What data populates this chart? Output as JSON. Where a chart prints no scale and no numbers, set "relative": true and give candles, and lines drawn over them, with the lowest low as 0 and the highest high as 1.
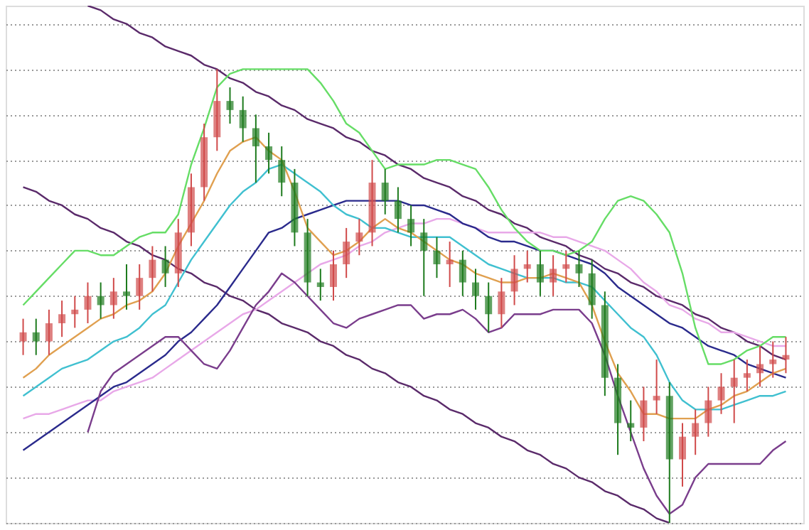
{
  "chart_data": {
    "type": "candlestick",
    "relative": true,
    "grid": "y",
    "categories": [
      null,
      null,
      null,
      null,
      null,
      null,
      null,
      null,
      null,
      null,
      null,
      null,
      null,
      null,
      null,
      null,
      null,
      null,
      null,
      null,
      null,
      null,
      null,
      null,
      null,
      null,
      null,
      null,
      null,
      null,
      null,
      null,
      null,
      null,
      null,
      null,
      null,
      null,
      null,
      null,
      null,
      null,
      null,
      null,
      null,
      null,
      null,
      null,
      null,
      null,
      null,
      null,
      null,
      null,
      null,
      null,
      null,
      null,
      null,
      null
    ],
    "ohlc": [
      [
        0.4,
        0.45,
        0.37,
        0.42
      ],
      [
        0.42,
        0.45,
        0.37,
        0.4
      ],
      [
        0.4,
        0.47,
        0.37,
        0.44
      ],
      [
        0.44,
        0.49,
        0.41,
        0.46
      ],
      [
        0.46,
        0.5,
        0.43,
        0.47
      ],
      [
        0.47,
        0.53,
        0.44,
        0.5
      ],
      [
        0.5,
        0.53,
        0.45,
        0.48
      ],
      [
        0.48,
        0.54,
        0.45,
        0.51
      ],
      [
        0.51,
        0.57,
        0.47,
        0.5
      ],
      [
        0.5,
        0.57,
        0.47,
        0.54
      ],
      [
        0.54,
        0.61,
        0.51,
        0.58
      ],
      [
        0.58,
        0.61,
        0.52,
        0.55
      ],
      [
        0.55,
        0.67,
        0.52,
        0.64
      ],
      [
        0.64,
        0.77,
        0.61,
        0.74
      ],
      [
        0.74,
        0.88,
        0.71,
        0.85
      ],
      [
        0.85,
        1.0,
        0.82,
        0.93
      ],
      [
        0.93,
        0.96,
        0.88,
        0.91
      ],
      [
        0.91,
        0.94,
        0.84,
        0.87
      ],
      [
        0.87,
        0.9,
        0.75,
        0.83
      ],
      [
        0.83,
        0.86,
        0.77,
        0.8
      ],
      [
        0.8,
        0.83,
        0.72,
        0.75
      ],
      [
        0.75,
        0.78,
        0.61,
        0.64
      ],
      [
        0.64,
        0.67,
        0.5,
        0.53
      ],
      [
        0.53,
        0.56,
        0.49,
        0.52
      ],
      [
        0.52,
        0.6,
        0.49,
        0.57
      ],
      [
        0.57,
        0.65,
        0.54,
        0.62
      ],
      [
        0.62,
        0.67,
        0.59,
        0.64
      ],
      [
        0.64,
        0.8,
        0.61,
        0.75
      ],
      [
        0.75,
        0.78,
        0.68,
        0.71
      ],
      [
        0.71,
        0.74,
        0.64,
        0.67
      ],
      [
        0.67,
        0.7,
        0.61,
        0.64
      ],
      [
        0.64,
        0.67,
        0.5,
        0.6
      ],
      [
        0.6,
        0.63,
        0.54,
        0.57
      ],
      [
        0.57,
        0.62,
        0.52,
        0.58
      ],
      [
        0.58,
        0.6,
        0.5,
        0.53
      ],
      [
        0.53,
        0.56,
        0.47,
        0.5
      ],
      [
        0.5,
        0.53,
        0.42,
        0.46
      ],
      [
        0.46,
        0.54,
        0.43,
        0.51
      ],
      [
        0.51,
        0.59,
        0.48,
        0.56
      ],
      [
        0.56,
        0.6,
        0.53,
        0.57
      ],
      [
        0.57,
        0.6,
        0.5,
        0.53
      ],
      [
        0.53,
        0.59,
        0.5,
        0.56
      ],
      [
        0.56,
        0.6,
        0.53,
        0.57
      ],
      [
        0.57,
        0.6,
        0.52,
        0.55
      ],
      [
        0.55,
        0.58,
        0.45,
        0.48
      ],
      [
        0.48,
        0.51,
        0.28,
        0.32
      ],
      [
        0.32,
        0.35,
        0.15,
        0.22
      ],
      [
        0.22,
        0.27,
        0.18,
        0.21
      ],
      [
        0.21,
        0.3,
        0.18,
        0.27
      ],
      [
        0.27,
        0.36,
        0.24,
        0.28
      ],
      [
        0.28,
        0.31,
        0.0,
        0.14
      ],
      [
        0.14,
        0.22,
        0.08,
        0.19
      ],
      [
        0.19,
        0.25,
        0.15,
        0.22
      ],
      [
        0.22,
        0.3,
        0.19,
        0.27
      ],
      [
        0.27,
        0.33,
        0.24,
        0.3
      ],
      [
        0.3,
        0.36,
        0.22,
        0.32
      ],
      [
        0.32,
        0.36,
        0.29,
        0.33
      ],
      [
        0.33,
        0.39,
        0.3,
        0.35
      ],
      [
        0.35,
        0.4,
        0.32,
        0.36
      ],
      [
        0.36,
        0.41,
        0.33,
        0.37
      ]
    ],
    "colors": [
      "#d04a4a",
      "#1e7b1e",
      "#d04a4a",
      "#d04a4a",
      "#d04a4a",
      "#d04a4a",
      "#1e7b1e",
      "#d04a4a",
      "#1e7b1e",
      "#d04a4a",
      "#d04a4a",
      "#1e7b1e",
      "#d04a4a",
      "#d04a4a",
      "#d04a4a",
      "#d04a4a",
      "#1e7b1e",
      "#1e7b1e",
      "#1e7b1e",
      "#1e7b1e",
      "#1e7b1e",
      "#1e7b1e",
      "#1e7b1e",
      "#1e7b1e",
      "#d04a4a",
      "#d04a4a",
      "#d04a4a",
      "#d04a4a",
      "#1e7b1e",
      "#1e7b1e",
      "#1e7b1e",
      "#1e7b1e",
      "#1e7b1e",
      "#d04a4a",
      "#1e7b1e",
      "#1e7b1e",
      "#1e7b1e",
      "#d04a4a",
      "#d04a4a",
      "#d04a4a",
      "#1e7b1e",
      "#d04a4a",
      "#d04a4a",
      "#1e7b1e",
      "#1e7b1e",
      "#1e7b1e",
      "#1e7b1e",
      "#1e7b1e",
      "#d04a4a",
      "#d04a4a",
      "#1e7b1e",
      "#d04a4a",
      "#d04a4a",
      "#d04a4a",
      "#d04a4a",
      "#d04a4a",
      "#d04a4a",
      "#d04a4a",
      "#d04a4a",
      "#d04a4a"
    ],
    "series": [
      {
        "type": "line",
        "color": "#5a2a6a",
        "values": [
          null,
          null,
          null,
          null,
          null,
          1.14,
          1.13,
          1.11,
          1.1,
          1.08,
          1.07,
          1.05,
          1.04,
          1.03,
          1.01,
          1.0,
          0.98,
          0.97,
          0.95,
          0.94,
          0.92,
          0.91,
          0.89,
          0.88,
          0.87,
          0.85,
          0.84,
          0.82,
          0.81,
          0.79,
          0.78,
          0.76,
          0.75,
          0.74,
          0.72,
          0.71,
          0.69,
          0.68,
          0.66,
          0.65,
          0.63,
          0.62,
          0.61,
          0.59,
          0.58,
          0.56,
          0.55,
          0.53,
          0.52,
          0.5,
          0.49,
          0.48,
          0.46,
          0.45,
          0.43,
          0.42,
          0.4,
          0.39,
          0.37,
          0.36
        ]
      },
      {
        "type": "line",
        "color": "#5a2a6a",
        "values": [
          0.74,
          0.73,
          0.71,
          0.7,
          0.68,
          0.67,
          0.65,
          0.64,
          0.62,
          0.61,
          0.59,
          0.58,
          0.56,
          0.55,
          0.53,
          0.52,
          0.5,
          0.49,
          0.47,
          0.46,
          0.44,
          0.43,
          0.42,
          0.4,
          0.39,
          0.37,
          0.36,
          0.34,
          0.33,
          0.31,
          0.3,
          0.28,
          0.27,
          0.25,
          0.24,
          0.22,
          0.21,
          0.19,
          0.18,
          0.16,
          0.15,
          0.13,
          0.12,
          0.1,
          0.09,
          0.07,
          0.06,
          0.04,
          0.03,
          0.01,
          0.0,
          null,
          null,
          null,
          null,
          null,
          null,
          null,
          null,
          null
        ]
      },
      {
        "type": "line",
        "color": "#e8a8e8",
        "values": [
          0.23,
          0.24,
          0.24,
          0.25,
          0.26,
          0.27,
          0.27,
          0.29,
          0.3,
          0.31,
          0.32,
          0.34,
          0.36,
          0.38,
          0.4,
          0.42,
          0.44,
          0.46,
          0.47,
          0.49,
          0.51,
          0.53,
          0.55,
          0.57,
          0.58,
          0.59,
          0.61,
          0.62,
          0.64,
          0.65,
          0.66,
          0.66,
          0.67,
          0.67,
          0.66,
          0.65,
          0.64,
          0.64,
          0.64,
          0.64,
          0.64,
          0.63,
          0.63,
          0.62,
          0.61,
          0.6,
          0.58,
          0.56,
          0.53,
          0.51,
          0.48,
          0.47,
          0.45,
          0.44,
          0.42,
          0.42,
          0.41,
          0.4,
          0.39,
          0.39
        ]
      },
      {
        "type": "line",
        "color": "#2a2a8c",
        "values": [
          0.16,
          0.18,
          0.2,
          0.22,
          0.24,
          0.26,
          0.28,
          0.3,
          0.31,
          0.33,
          0.35,
          0.37,
          0.4,
          0.42,
          0.45,
          0.48,
          0.52,
          0.56,
          0.6,
          0.64,
          0.65,
          0.67,
          0.68,
          0.69,
          0.7,
          0.71,
          0.71,
          0.71,
          0.71,
          0.71,
          0.7,
          0.7,
          0.69,
          0.68,
          0.66,
          0.65,
          0.63,
          0.62,
          0.62,
          0.61,
          0.6,
          0.6,
          0.59,
          0.58,
          0.57,
          0.55,
          0.52,
          0.5,
          0.48,
          0.46,
          0.44,
          0.43,
          0.41,
          0.39,
          0.38,
          0.37,
          0.35,
          0.34,
          0.33,
          0.32
        ]
      },
      {
        "type": "line",
        "color": "#40c0d0",
        "values": [
          0.28,
          0.3,
          0.32,
          0.34,
          0.35,
          0.36,
          0.38,
          0.4,
          0.41,
          0.43,
          0.46,
          0.48,
          0.53,
          0.58,
          0.62,
          0.66,
          0.7,
          0.73,
          0.75,
          0.78,
          0.79,
          0.77,
          0.75,
          0.73,
          0.7,
          0.68,
          0.67,
          0.65,
          0.65,
          0.64,
          0.63,
          0.63,
          0.63,
          0.63,
          0.61,
          0.59,
          0.57,
          0.56,
          0.55,
          0.54,
          0.54,
          0.54,
          0.53,
          0.53,
          0.52,
          0.49,
          0.46,
          0.43,
          0.41,
          0.37,
          0.31,
          0.27,
          0.25,
          0.25,
          0.25,
          0.26,
          0.27,
          0.28,
          0.28,
          0.29
        ]
      },
      {
        "type": "line",
        "color": "#e0a050",
        "values": [
          0.32,
          0.34,
          0.37,
          0.39,
          0.41,
          0.43,
          0.45,
          0.46,
          0.48,
          0.49,
          0.51,
          0.55,
          0.61,
          0.66,
          0.71,
          0.77,
          0.82,
          0.84,
          0.85,
          0.82,
          0.8,
          0.73,
          0.65,
          0.62,
          0.59,
          0.6,
          0.62,
          0.65,
          0.67,
          0.65,
          0.64,
          0.62,
          0.6,
          0.58,
          0.57,
          0.55,
          0.54,
          0.53,
          0.53,
          0.54,
          0.54,
          0.55,
          0.54,
          0.53,
          0.48,
          0.4,
          0.33,
          0.29,
          0.24,
          0.24,
          0.23,
          0.23,
          0.23,
          0.25,
          0.26,
          0.28,
          0.29,
          0.31,
          0.33,
          0.34
        ]
      },
      {
        "type": "line",
        "color": "#66dd66",
        "values": [
          0.48,
          0.51,
          0.54,
          0.57,
          0.6,
          0.6,
          0.59,
          0.59,
          0.61,
          0.63,
          0.64,
          0.64,
          0.68,
          0.79,
          0.87,
          0.96,
          0.99,
          1.0,
          1.0,
          1.0,
          1.0,
          1.0,
          1.0,
          0.97,
          0.93,
          0.88,
          0.86,
          0.82,
          0.78,
          0.79,
          0.79,
          0.79,
          0.8,
          0.8,
          0.79,
          0.78,
          0.74,
          0.69,
          0.65,
          0.62,
          0.6,
          0.6,
          0.59,
          0.6,
          0.62,
          0.67,
          0.71,
          0.72,
          0.71,
          0.68,
          0.64,
          0.55,
          0.43,
          0.35,
          0.35,
          0.36,
          0.38,
          0.39,
          0.41,
          0.41
        ]
      },
      {
        "type": "line",
        "color": "#7a3d8c",
        "values": [
          null,
          null,
          null,
          null,
          null,
          0.2,
          0.29,
          0.33,
          0.35,
          0.37,
          0.39,
          0.41,
          0.41,
          0.38,
          0.35,
          0.34,
          0.38,
          0.43,
          0.48,
          0.51,
          0.55,
          0.53,
          0.5,
          0.47,
          0.44,
          0.43,
          0.45,
          0.46,
          0.47,
          0.48,
          0.48,
          0.45,
          0.46,
          0.46,
          0.47,
          0.45,
          0.42,
          0.43,
          0.46,
          0.46,
          0.46,
          0.47,
          0.47,
          0.47,
          0.44,
          0.37,
          0.28,
          0.2,
          0.12,
          0.06,
          0.02,
          0.04,
          0.1,
          0.13,
          0.13,
          0.13,
          0.13,
          0.13,
          0.16,
          0.18
        ]
      }
    ]
  }
}
